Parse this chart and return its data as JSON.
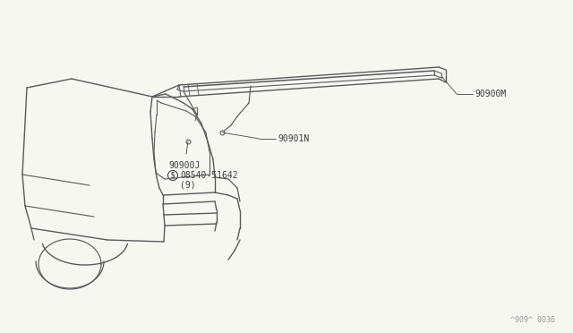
{
  "bg_color": "#f7f7f2",
  "line_color": "#5a5a5a",
  "text_color": "#3a3a3a",
  "watermark": "^909^ 0036",
  "label_90900M": "90900M",
  "label_90901N": "90901N",
  "label_90900J": "90900J",
  "label_screw": "08540-51642",
  "label_screw_sub": "(9)",
  "label_screw_sym": "S"
}
